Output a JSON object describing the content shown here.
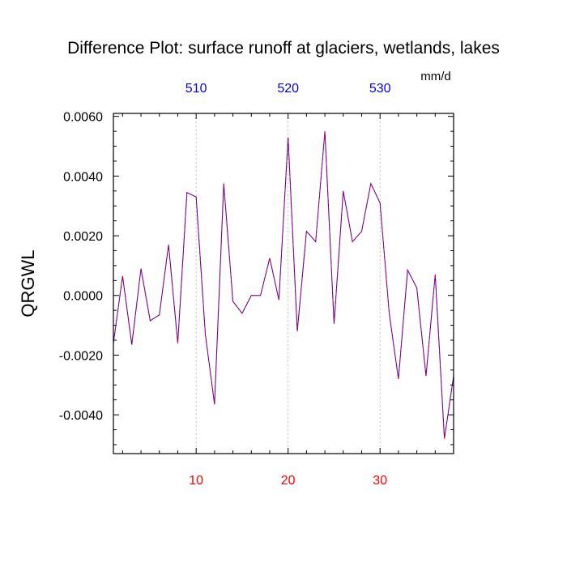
{
  "chart_data": {
    "type": "line",
    "title": "Difference Plot: surface runoff at glaciers, wetlands, lakes",
    "units": "mm/d",
    "ylabel": "QRGWL",
    "xlabel": "",
    "xlim": [
      1,
      38
    ],
    "ylim": [
      -0.0053,
      0.0061
    ],
    "grid": "vertical dashed at bottom-axis ticks",
    "legend": "none",
    "bottom_axis": {
      "ticks": [
        10,
        20,
        30
      ],
      "tick_labels": [
        "10",
        "20",
        "30"
      ],
      "color": "#ff0000"
    },
    "top_axis": {
      "ticks": [
        10,
        20,
        30
      ],
      "tick_labels": [
        "510",
        "520",
        "530"
      ],
      "color": "#0000ff"
    },
    "y_ticks": [
      -0.004,
      -0.002,
      0.0,
      0.002,
      0.004,
      0.006
    ],
    "y_tick_labels": [
      "-0.0040",
      "-0.0020",
      "0.0000",
      "0.0020",
      "0.0040",
      "0.0060"
    ],
    "series": [
      {
        "color": "#0000ff",
        "x": [
          1,
          2,
          3,
          4,
          5,
          6,
          7,
          8,
          9,
          10,
          11,
          12,
          13,
          14,
          15,
          16,
          17,
          18,
          19,
          20,
          21,
          22,
          23,
          24,
          25,
          26,
          27,
          28,
          29,
          30,
          31,
          32,
          33,
          34,
          35,
          36,
          37,
          38
        ],
        "y": [
          -0.0016,
          0.00065,
          -0.00165,
          0.0009,
          -0.00085,
          -0.00065,
          0.0017,
          -0.0016,
          0.00345,
          0.0033,
          -0.0013,
          -0.00365,
          0.00375,
          -0.0002,
          -0.0006,
          0.0,
          0.0,
          0.00125,
          -0.00015,
          0.0053,
          -0.0012,
          0.00215,
          0.0018,
          0.0055,
          -0.00095,
          0.0035,
          0.0018,
          0.00215,
          0.00375,
          0.0031,
          -0.0006,
          -0.0028,
          0.00085,
          0.00025,
          -0.0027,
          0.0007,
          -0.0048,
          -0.0027
        ]
      },
      {
        "color": "#ff0000",
        "x": [
          1,
          2,
          3,
          4,
          5,
          6,
          7,
          8,
          9,
          10,
          11,
          12,
          13,
          14,
          15,
          16,
          17,
          18,
          19,
          20,
          21,
          22,
          23,
          24,
          25,
          26,
          27,
          28,
          29,
          30,
          31,
          32,
          33,
          34,
          35,
          36,
          37,
          38
        ],
        "y": [
          -0.0016,
          0.00065,
          -0.00165,
          0.0009,
          -0.00085,
          -0.00065,
          0.0017,
          -0.0016,
          0.00345,
          0.0033,
          -0.0013,
          -0.00365,
          0.00375,
          -0.0002,
          -0.0006,
          0.0,
          0.0,
          0.00125,
          -0.00015,
          0.0053,
          -0.0012,
          0.00215,
          0.0018,
          0.0055,
          -0.00095,
          0.0035,
          0.0018,
          0.00215,
          0.00375,
          0.0031,
          -0.0006,
          -0.0028,
          0.00085,
          0.00025,
          -0.0027,
          0.0007,
          -0.0048,
          -0.0027
        ]
      }
    ]
  }
}
